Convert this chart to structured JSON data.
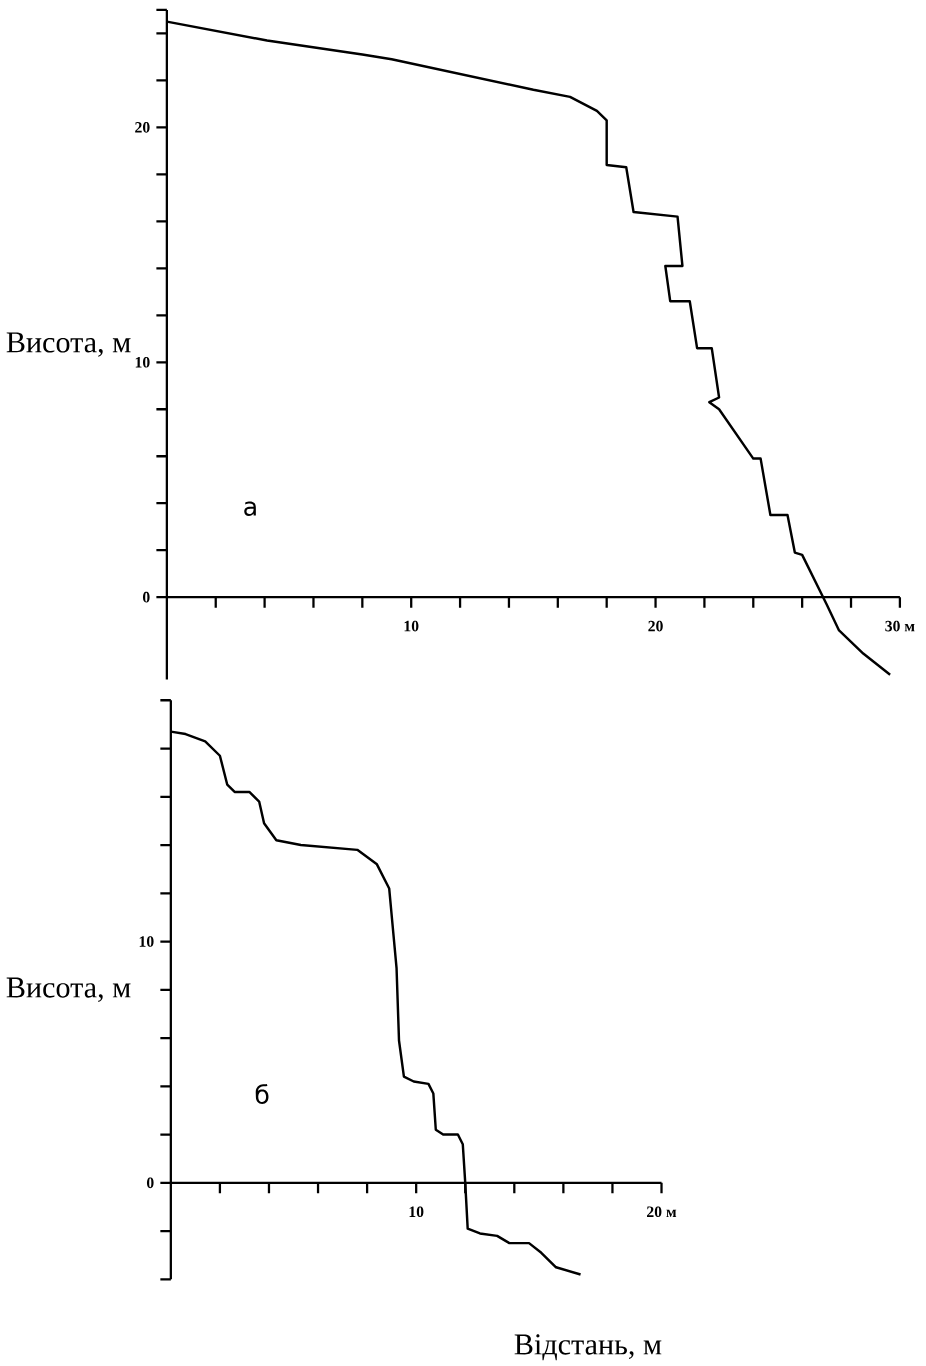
{
  "chart_data": [
    {
      "type": "line",
      "ylabel": "Висота, м",
      "annotations": [
        "а"
      ],
      "x": [
        0,
        4.1,
        8.0,
        9.2,
        15.0,
        16.5,
        17.6,
        18.0,
        18.0,
        18.8,
        19.1,
        20.9,
        21.1,
        20.4,
        20.6,
        21.4,
        21.7,
        22.3,
        22.6,
        22.2,
        22.6,
        24.0,
        24.3,
        24.7,
        25.4,
        25.7,
        26.0,
        27.0,
        27.5,
        28.5,
        29.6
      ],
      "series": [
        {
          "color": "#000000",
          "values": [
            24.5,
            23.7,
            23.1,
            22.9,
            21.6,
            21.3,
            20.7,
            20.3,
            18.4,
            18.3,
            16.4,
            16.2,
            14.1,
            14.1,
            12.6,
            12.6,
            10.6,
            10.6,
            8.5,
            8.3,
            8.0,
            5.9,
            5.9,
            3.5,
            3.5,
            1.9,
            1.8,
            -0.3,
            -1.4,
            -2.4,
            -3.3
          ]
        }
      ],
      "xlim": [
        0,
        30
      ],
      "ylim": [
        -3.5,
        25
      ],
      "xticks": [
        {
          "value": 2,
          "label": null
        },
        {
          "value": 4,
          "label": null
        },
        {
          "value": 6,
          "label": null
        },
        {
          "value": 8,
          "label": null
        },
        10,
        {
          "value": 12,
          "label": null
        },
        {
          "value": 14,
          "label": null
        },
        {
          "value": 16,
          "label": null
        },
        {
          "value": 18,
          "label": null
        },
        20,
        {
          "value": 22,
          "label": null
        },
        {
          "value": 24,
          "label": null
        },
        {
          "value": 26,
          "label": null
        },
        {
          "value": 28,
          "label": null
        },
        {
          "value": 30,
          "label": "30 м"
        }
      ],
      "yticks": [
        0,
        {
          "value": 2,
          "label": null
        },
        {
          "value": 4,
          "label": null
        },
        {
          "value": 6,
          "label": null
        },
        {
          "value": 8,
          "label": null
        },
        10,
        {
          "value": 12,
          "label": null
        },
        {
          "value": 14,
          "label": null
        },
        {
          "value": 16,
          "label": null
        },
        {
          "value": 18,
          "label": null
        },
        20,
        {
          "value": 22,
          "label": null
        },
        {
          "value": 24,
          "label": null
        },
        {
          "value": 25,
          "label": null
        }
      ]
    },
    {
      "type": "line",
      "ylabel": "Висота, м",
      "xlabel": "Відстань, м",
      "annotations": [
        "б"
      ],
      "x": [
        0,
        0.6,
        1.4,
        2.0,
        2.3,
        2.6,
        3.2,
        3.6,
        3.8,
        4.3,
        5.3,
        7.6,
        8.4,
        8.9,
        9.0,
        9.2,
        9.3,
        9.5,
        9.9,
        10.5,
        10.7,
        10.8,
        11.1,
        11.7,
        11.9,
        12.0,
        12.1,
        12.6,
        13.3,
        13.8,
        14.6,
        15.1,
        15.7,
        16.7
      ],
      "series": [
        {
          "color": "#000000",
          "values": [
            18.7,
            18.6,
            18.3,
            17.7,
            16.5,
            16.2,
            16.2,
            15.8,
            14.9,
            14.2,
            14.0,
            13.8,
            13.2,
            12.2,
            11.1,
            8.9,
            5.9,
            4.4,
            4.2,
            4.1,
            3.7,
            2.2,
            2.0,
            2.0,
            1.6,
            0,
            -1.9,
            -2.1,
            -2.2,
            -2.5,
            -2.5,
            -2.9,
            -3.5,
            -3.8
          ]
        }
      ],
      "xlim": [
        0,
        20
      ],
      "ylim": [
        -4,
        20
      ],
      "xticks": [
        {
          "value": 2,
          "label": null
        },
        {
          "value": 4,
          "label": null
        },
        {
          "value": 6,
          "label": null
        },
        {
          "value": 8,
          "label": null
        },
        10,
        {
          "value": 12,
          "label": null
        },
        {
          "value": 14,
          "label": null
        },
        {
          "value": 16,
          "label": null
        },
        {
          "value": 18,
          "label": null
        },
        {
          "value": 20,
          "label": "20 м"
        }
      ],
      "yticks": [
        {
          "value": -4,
          "label": null
        },
        {
          "value": -2,
          "label": null
        },
        0,
        {
          "value": 2,
          "label": null
        },
        {
          "value": 4,
          "label": null
        },
        {
          "value": 6,
          "label": null
        },
        {
          "value": 8,
          "label": null
        },
        10,
        {
          "value": 12,
          "label": null
        },
        {
          "value": 14,
          "label": null
        },
        {
          "value": 16,
          "label": null
        },
        {
          "value": 18,
          "label": null
        },
        {
          "value": 20,
          "label": null
        }
      ]
    }
  ]
}
